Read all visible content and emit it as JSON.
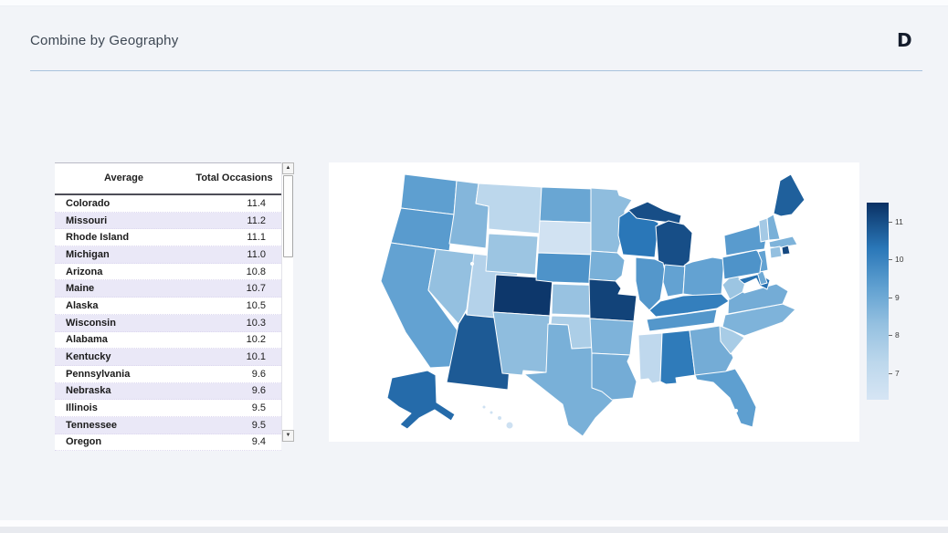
{
  "page": {
    "title": "Combine by Geography",
    "logo_glyph": "D"
  },
  "table": {
    "columns": [
      "Average",
      "Total Occasions"
    ],
    "rows": [
      {
        "state": "Colorado",
        "value": "11.4"
      },
      {
        "state": "Missouri",
        "value": "11.2"
      },
      {
        "state": "Rhode Island",
        "value": "11.1"
      },
      {
        "state": "Michigan",
        "value": "11.0"
      },
      {
        "state": "Arizona",
        "value": "10.8"
      },
      {
        "state": "Maine",
        "value": "10.7"
      },
      {
        "state": "Alaska",
        "value": "10.5"
      },
      {
        "state": "Wisconsin",
        "value": "10.3"
      },
      {
        "state": "Alabama",
        "value": "10.2"
      },
      {
        "state": "Kentucky",
        "value": "10.1"
      },
      {
        "state": "Pennsylvania",
        "value": "9.6"
      },
      {
        "state": "Nebraska",
        "value": "9.6"
      },
      {
        "state": "Illinois",
        "value": "9.5"
      },
      {
        "state": "Tennessee",
        "value": "9.5"
      },
      {
        "state": "Oregon",
        "value": "9.4"
      }
    ],
    "scrollbar": {
      "up_glyph": "▲",
      "down_glyph": "▼"
    }
  },
  "chart_data": {
    "type": "heatmap",
    "subtype": "us-state-choropleth",
    "title": "Combine by Geography",
    "metric": "Total Occasions (Average)",
    "legend": {
      "position": "right",
      "ticks": [
        11,
        10,
        9,
        8,
        7
      ],
      "domain": [
        6.3,
        11.5
      ]
    },
    "color_stops": [
      [
        6.3,
        "#d6e5f4"
      ],
      [
        7.3,
        "#bcd7ec"
      ],
      [
        8.3,
        "#94c0e0"
      ],
      [
        9.3,
        "#5e9fd0"
      ],
      [
        10.3,
        "#2a77b8"
      ],
      [
        11.5,
        "#0a3164"
      ]
    ],
    "state_values": {
      "AL": 10.2,
      "AK": 10.5,
      "AZ": 10.8,
      "AR": 8.7,
      "CA": 9.2,
      "CO": 11.4,
      "CT": 8.3,
      "DE": 9.0,
      "FL": 9.3,
      "GA": 8.9,
      "HI": 6.6,
      "ID": 8.6,
      "IL": 9.5,
      "IN": 9.2,
      "IA": 8.8,
      "KS": 8.2,
      "KY": 10.1,
      "LA": 8.9,
      "ME": 10.7,
      "MD": 10.4,
      "MA": 8.7,
      "MI": 11.0,
      "MN": 8.4,
      "MS": 7.2,
      "MO": 11.2,
      "MT": 7.3,
      "NE": 9.6,
      "NV": 8.3,
      "NH": 8.8,
      "NJ": 9.2,
      "NM": 8.4,
      "NY": 9.4,
      "NC": 8.7,
      "ND": 9.1,
      "OH": 9.2,
      "OK": 7.7,
      "OR": 9.4,
      "PA": 9.6,
      "RI": 11.1,
      "SC": 7.8,
      "SD": 6.5,
      "TN": 9.5,
      "TX": 8.8,
      "UT": 7.5,
      "VT": 7.9,
      "VA": 8.9,
      "WA": 9.3,
      "WV": 8.1,
      "WI": 10.3,
      "WY": 8.1
    }
  },
  "colors": {
    "background": "#f2f4f8",
    "divider": "#a9c3dd",
    "row_stripe": "#eae8f7",
    "choropleth_dark": "#0a3164",
    "choropleth_light": "#d6e5f4"
  }
}
